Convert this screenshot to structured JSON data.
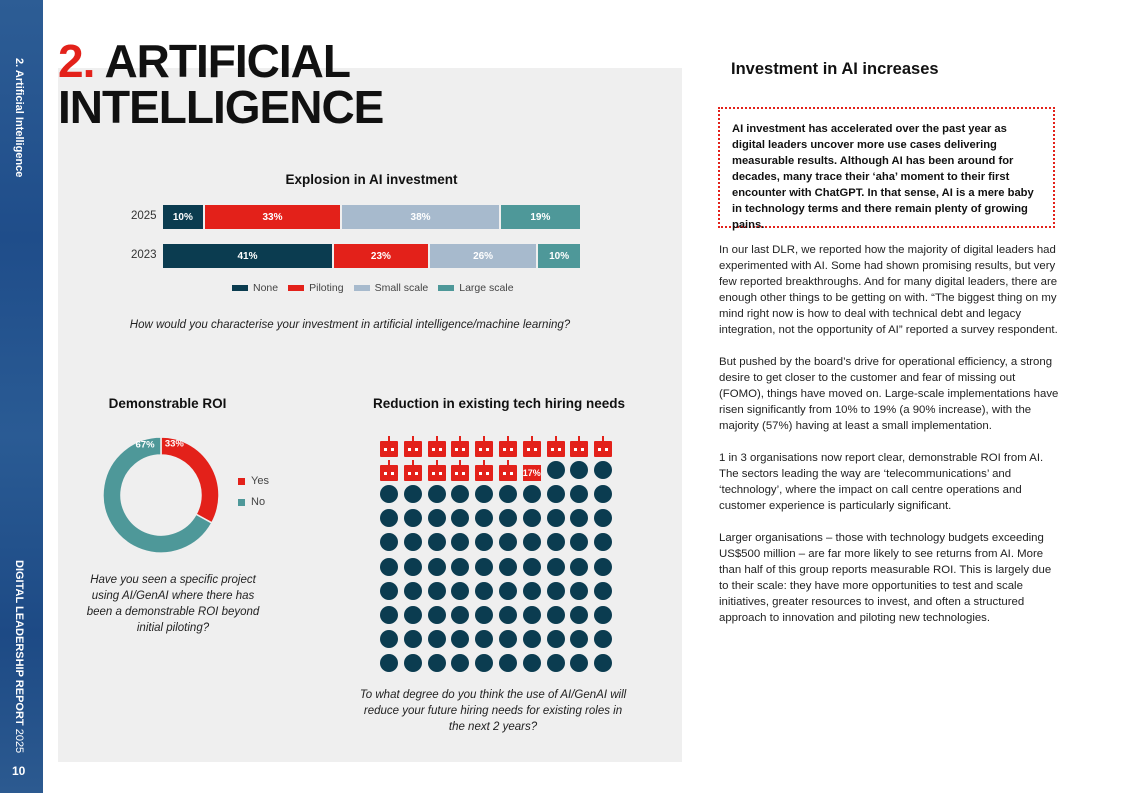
{
  "sidebar": {
    "section": "2. Artificial Intelligence",
    "report": "DIGITAL LEADERSHIP REPORT",
    "year": "2025",
    "page": "10"
  },
  "title": {
    "number": "2.",
    "line1": "ARTIFICIAL",
    "line2": "INTELLIGENCE"
  },
  "colors": {
    "none": "#0b3c50",
    "piloting": "#e3211a",
    "small_scale": "#a7bacd",
    "large_scale": "#4e9899",
    "accent": "#e3211a",
    "panel": "#efefef"
  },
  "chart_data": [
    {
      "type": "bar",
      "orientation": "horizontal-stacked",
      "title": "Explosion in AI investment",
      "categories": [
        "2025",
        "2023"
      ],
      "series": [
        {
          "name": "None",
          "values": [
            10,
            41
          ]
        },
        {
          "name": "Piloting",
          "values": [
            33,
            23
          ]
        },
        {
          "name": "Small scale",
          "values": [
            38,
            26
          ]
        },
        {
          "name": "Large scale",
          "values": [
            19,
            10
          ]
        }
      ],
      "legend": "bottom",
      "question": "How would you characterise your investment in artificial intelligence/machine learning?"
    },
    {
      "type": "pie",
      "variant": "donut",
      "title": "Demonstrable ROI",
      "categories": [
        "Yes",
        "No"
      ],
      "values": [
        33,
        67
      ],
      "labels": [
        "33%",
        "67%"
      ],
      "legend": "right",
      "question": "Have you seen a specific project using AI/GenAI where there has been a demonstrable ROI beyond initial piloting?"
    },
    {
      "type": "pictogram",
      "title": "Reduction in existing tech hiring needs",
      "total": 100,
      "highlighted": 17,
      "label": "17%",
      "highlight_icon": "robot-icon",
      "other_icon": "dot",
      "question": "To what degree do you think the use of AI/GenAI will reduce your future hiring needs for existing roles in the next 2 years?"
    }
  ],
  "right": {
    "title": "Investment in AI increases",
    "callout": "AI investment has accelerated over the past year as digital leaders uncover more use cases delivering measurable results. Although AI has been around for decades, many trace their ‘aha’ moment to their first encounter with ChatGPT. In that sense, AI is a mere baby in technology terms and there remain plenty of growing pains.",
    "paragraphs": [
      "In our last DLR, we reported how the majority of digital leaders had experimented with AI. Some had shown promising results, but very few reported breakthroughs. And for many digital leaders, there are enough other things to be getting on with. “The biggest thing on my mind right now is how to deal with technical debt and legacy integration, not the opportunity of AI” reported a survey respondent.",
      "But pushed by the board’s drive for operational efficiency, a strong desire to get closer to the customer and fear of missing out (FOMO), things have moved on. Large-scale implementations have risen significantly from 10% to 19% (a 90% increase), with the majority (57%) having at least a small implementation.",
      "1 in 3 organisations now report clear, demonstrable ROI from AI. The sectors leading the way are ‘telecommunications’ and ‘technology’, where the impact on call centre operations and customer experience is particularly significant.",
      "Larger organisations – those with technology budgets exceeding US$500 million – are far more likely to see returns from AI. More than half of this group reports measurable ROI. This is largely due to their scale: they have more opportunities to test and scale initiatives, greater resources to invest, and often a structured approach to innovation and piloting new technologies."
    ]
  }
}
